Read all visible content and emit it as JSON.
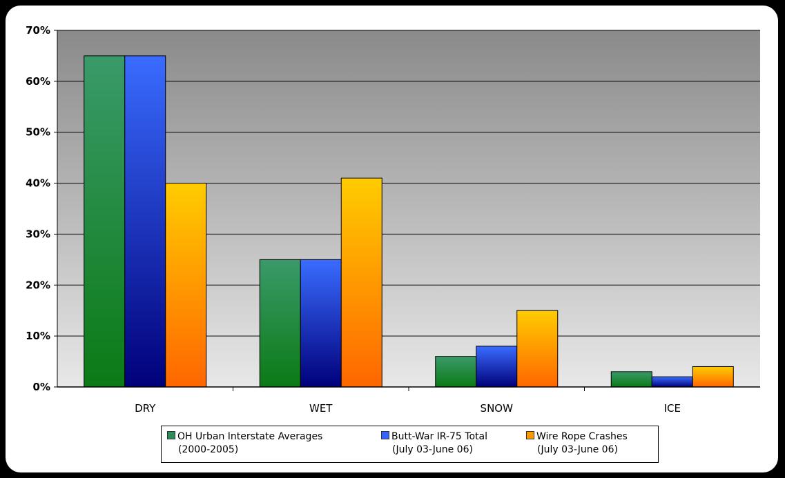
{
  "chart_data": {
    "type": "bar",
    "categories": [
      "DRY",
      "WET",
      "SNOW",
      "ICE"
    ],
    "series": [
      {
        "name": "OH Urban Interstate Averages",
        "name_sub": "(2000-2005)",
        "values": [
          65,
          25,
          6,
          3
        ],
        "color": "#2e8b57",
        "gradient": [
          "#3a9a6a",
          "#0b7a15"
        ]
      },
      {
        "name": "Butt-War IR-75 Total",
        "name_sub": "(July 03-June 06)",
        "values": [
          65,
          25,
          8,
          2
        ],
        "color": "#3366ff",
        "gradient": [
          "#3a6cff",
          "#00007a"
        ]
      },
      {
        "name": "Wire Rope Crashes",
        "name_sub": "(July 03-June 06)",
        "values": [
          40,
          41,
          15,
          4
        ],
        "color": "#ff9900",
        "gradient": [
          "#ffcc00",
          "#ff6600"
        ]
      }
    ],
    "y_ticks": [
      "0%",
      "10%",
      "20%",
      "30%",
      "40%",
      "50%",
      "60%",
      "70%"
    ],
    "ylim": [
      0,
      70
    ],
    "y_unit": "%",
    "grid": true,
    "legend_position": "bottom",
    "plot_background": [
      "#8a8a8a",
      "#e8e8e8"
    ],
    "title": "",
    "xlabel": "",
    "ylabel": ""
  }
}
